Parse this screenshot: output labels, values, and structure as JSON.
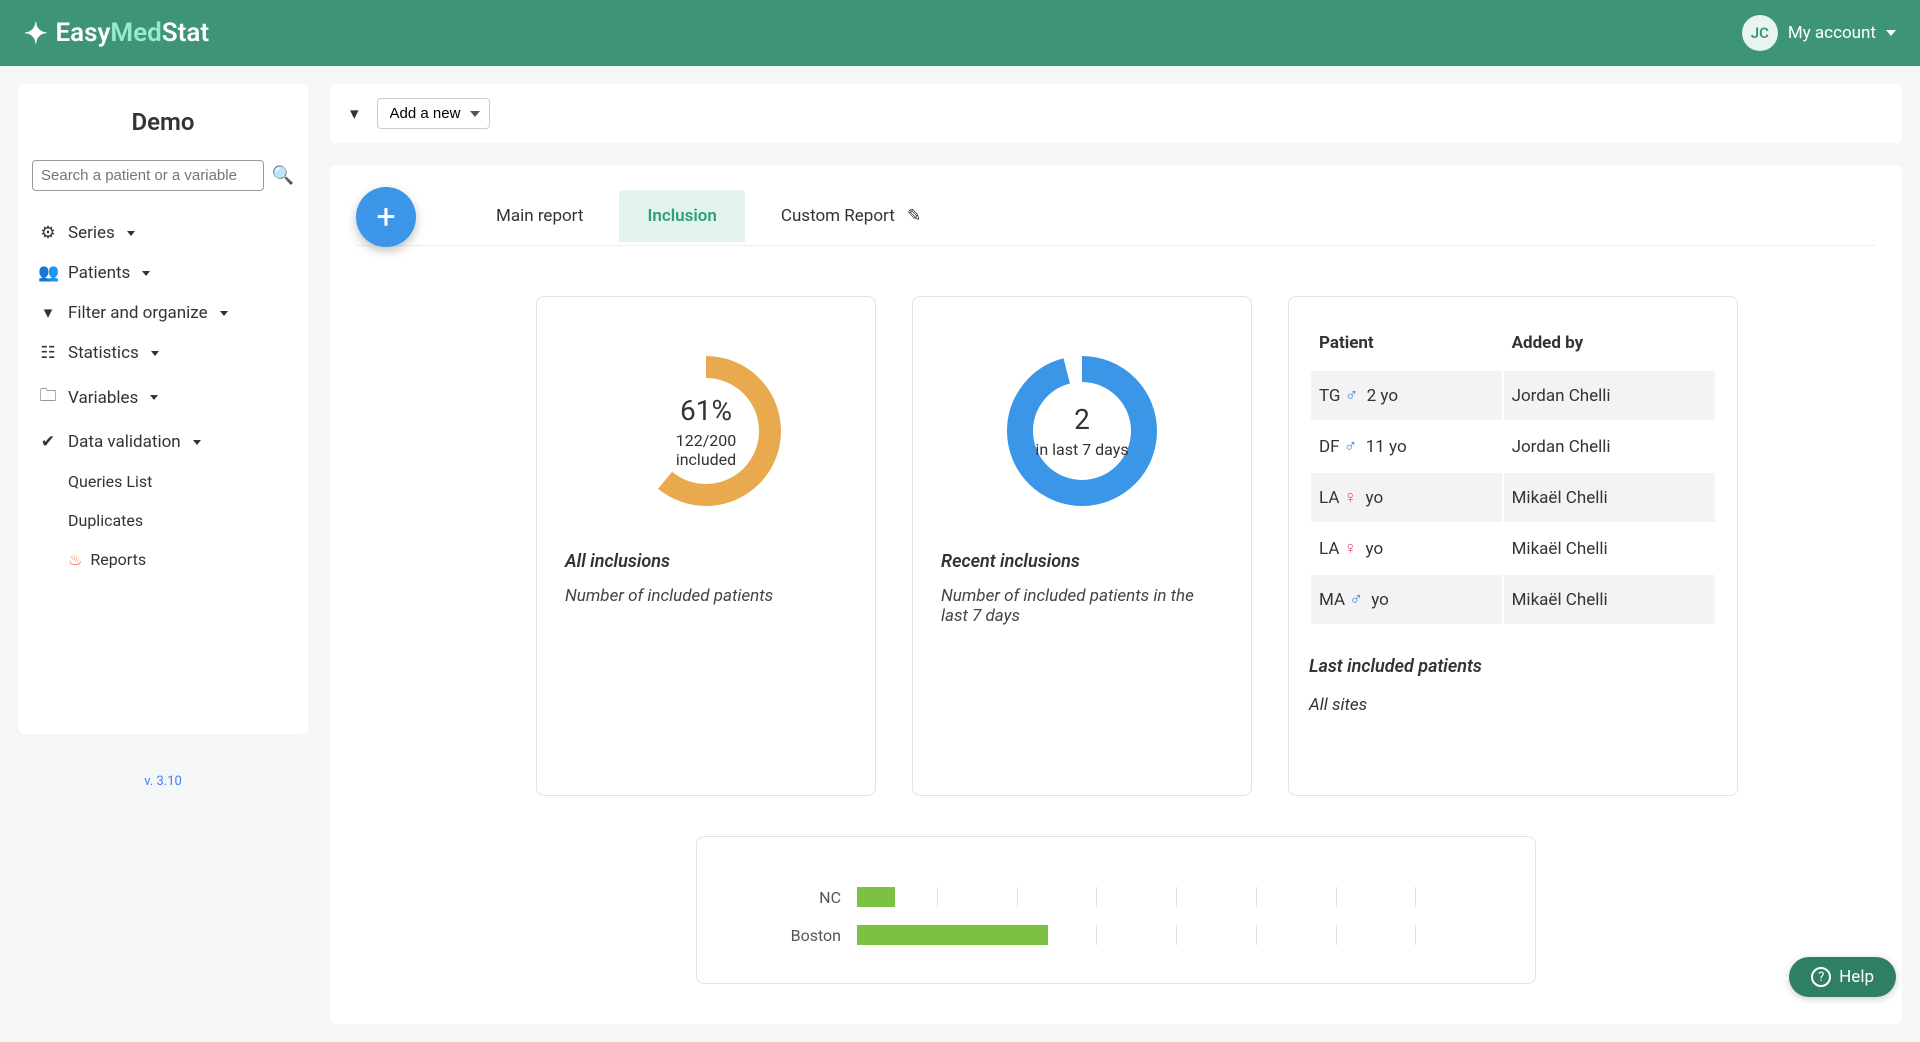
{
  "brand": {
    "easy": "Easy",
    "med": "Med",
    "stat": "Stat"
  },
  "header": {
    "avatar_initials": "JC",
    "account_label": "My account"
  },
  "sidebar": {
    "title": "Demo",
    "search_placeholder": "Search a patient or a variable",
    "items": [
      {
        "icon": "gear",
        "label": "Series"
      },
      {
        "icon": "users",
        "label": "Patients"
      },
      {
        "icon": "filter",
        "label": "Filter and organize"
      },
      {
        "icon": "stats",
        "label": "Statistics"
      },
      {
        "icon": "folder",
        "label": "Variables"
      },
      {
        "icon": "check",
        "label": "Data validation"
      }
    ],
    "sub_items": [
      {
        "label": "Queries List"
      },
      {
        "label": "Duplicates"
      },
      {
        "label": "Reports",
        "icon": "fire"
      }
    ],
    "version": "v. 3.10"
  },
  "toolbar": {
    "add_new_label": "Add a new"
  },
  "tabs": [
    {
      "label": "Main report",
      "active": false
    },
    {
      "label": "Inclusion",
      "active": true
    },
    {
      "label": "Custom Report",
      "active": false,
      "edit": true
    }
  ],
  "all_inclusions": {
    "type": "donut",
    "percent": 61,
    "percent_label": "61%",
    "count_label": "122/200",
    "sub_label": "included",
    "color": "#e9a94e",
    "bg_color": "#ffffff",
    "stroke_width": 22,
    "title": "All inclusions",
    "desc": "Number of included patients"
  },
  "recent_inclusions": {
    "type": "donut",
    "percent": 96,
    "big_label": "2",
    "sub_label": "in last 7 days",
    "color": "#3b96e8",
    "bg_color": "#ffffff",
    "stroke_width": 26,
    "title": "Recent inclusions",
    "desc": "Number of included patients in the last 7 days"
  },
  "patients_table": {
    "col_patient": "Patient",
    "col_added_by": "Added by",
    "rows": [
      {
        "initials": "TG",
        "gender": "m",
        "age": "2 yo",
        "added_by": "Jordan Chelli"
      },
      {
        "initials": "DF",
        "gender": "m",
        "age": "11 yo",
        "added_by": "Jordan Chelli"
      },
      {
        "initials": "LA",
        "gender": "f",
        "age": "yo",
        "added_by": "Mikaël Chelli"
      },
      {
        "initials": "LA",
        "gender": "f",
        "age": "yo",
        "added_by": "Mikaël Chelli"
      },
      {
        "initials": "MA",
        "gender": "m",
        "age": "yo",
        "added_by": "Mikaël Chelli"
      }
    ],
    "title": "Last included patients",
    "subtitle": "All sites"
  },
  "barchart": {
    "type": "bar-horizontal",
    "color": "#7cc142",
    "grid_color": "#e0e0e0",
    "rows": [
      {
        "label": "NC",
        "value": 6
      },
      {
        "label": "Boston",
        "value": 30
      }
    ],
    "xmax": 100,
    "ticks": 8
  },
  "help_label": "Help"
}
